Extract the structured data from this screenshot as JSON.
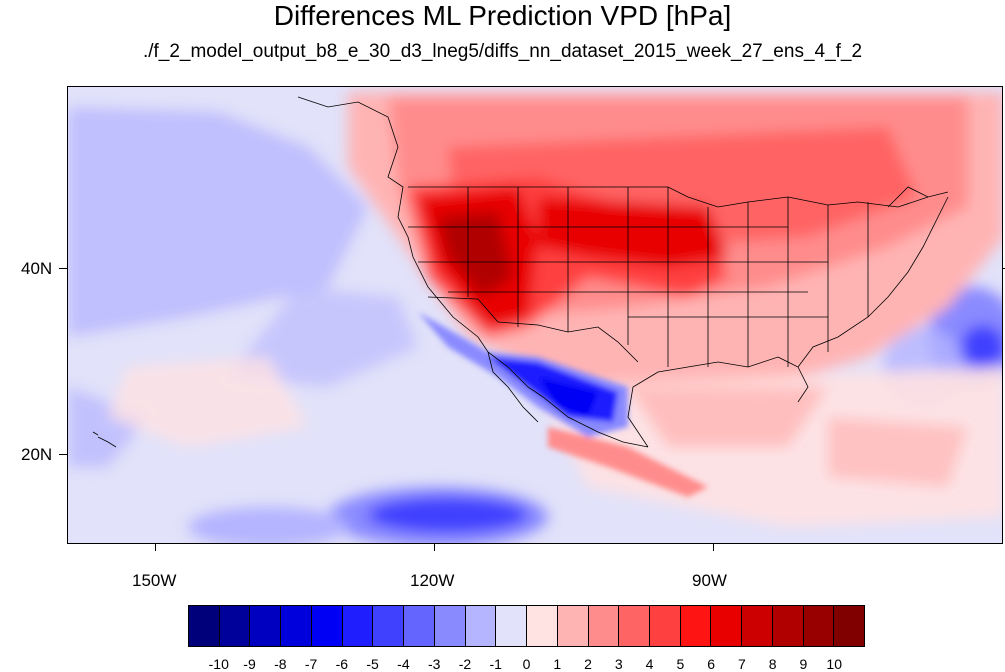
{
  "title": "Differences ML Prediction VPD [hPa]",
  "subtitle": "./f_2_model_output_b8_e_30_d3_lneg5/diffs_nn_dataset_2015_week_27_ens_4_f_2",
  "map": {
    "projection": "cylindrical equidistant",
    "lon_range": [
      -160,
      -62
    ],
    "lat_range": [
      10,
      58
    ],
    "lon_labels": [
      "150W",
      "120W",
      "90W"
    ],
    "lat_labels": [
      "40N",
      "20N"
    ],
    "boundaries": "country and US state outlines"
  },
  "colorbar": {
    "colors": [
      "#00007a",
      "#00009a",
      "#0000c0",
      "#0000dd",
      "#0000f5",
      "#1e1eff",
      "#4040ff",
      "#6464ff",
      "#8a8aff",
      "#b4b4ff",
      "#e2e2fa",
      "#ffe2e2",
      "#ffb4b4",
      "#ff8c8c",
      "#ff6464",
      "#ff4040",
      "#ff1414",
      "#e80000",
      "#cc0000",
      "#b00000",
      "#980000",
      "#800000"
    ],
    "labels": [
      "-10",
      "-9",
      "-8",
      "-7",
      "-6",
      "-5",
      "-4",
      "-3",
      "-2",
      "-1",
      "0",
      "1",
      "2",
      "3",
      "4",
      "5",
      "6",
      "7",
      "8",
      "9",
      "10"
    ]
  }
}
